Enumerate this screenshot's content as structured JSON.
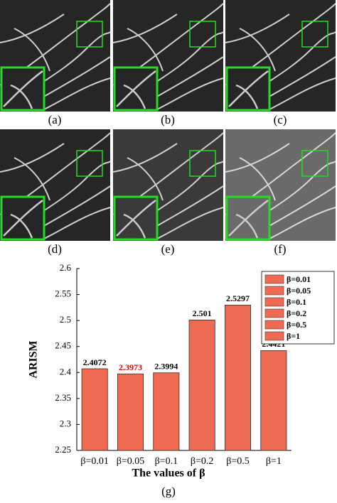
{
  "panels": [
    {
      "label": "(a)"
    },
    {
      "label": "(b)"
    },
    {
      "label": "(c)"
    },
    {
      "label": "(d)"
    },
    {
      "label": "(e)"
    },
    {
      "label": "(f)"
    }
  ],
  "chart_label": "(g)",
  "chart_data": {
    "type": "bar",
    "x_label": "The values of β",
    "y_label": "ARISM",
    "categories": [
      "β=0.01",
      "β=0.05",
      "β=0.1",
      "β=0.2",
      "β=0.5",
      "β=1"
    ],
    "values": [
      2.4072,
      2.3973,
      2.3994,
      2.501,
      2.5297,
      2.4421
    ],
    "value_label_colors": [
      "#000000",
      "#e00000",
      "#000000",
      "#000000",
      "#000000",
      "#000000"
    ],
    "color": "#ee6a50",
    "ylim": [
      2.25,
      2.6
    ],
    "yticks": [
      2.25,
      2.3,
      2.35,
      2.4,
      2.45,
      2.5,
      2.55,
      2.6
    ],
    "legend": "upper right"
  }
}
